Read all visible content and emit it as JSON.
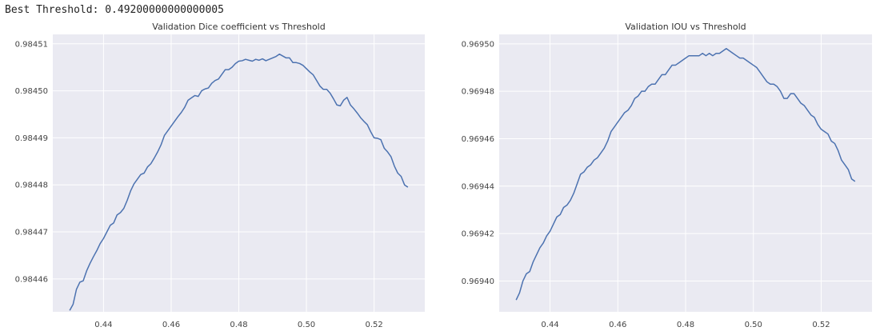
{
  "output": {
    "best_threshold_text": "Best Threshold: 0.49200000000000005"
  },
  "colors": {
    "background": "#EAEAF2",
    "grid": "#FFFFFF",
    "line": "#4C72B0"
  },
  "chart_data": [
    {
      "type": "line",
      "title": "Validation Dice coefficient vs Threshold",
      "xlabel": "",
      "ylabel": "",
      "xlim": [
        0.425,
        0.535
      ],
      "ylim": [
        0.984453,
        0.984512
      ],
      "xticks": [
        0.44,
        0.46,
        0.48,
        0.5,
        0.52
      ],
      "xtick_labels": [
        "0.44",
        "0.46",
        "0.48",
        "0.50",
        "0.52"
      ],
      "yticks": [
        0.98446,
        0.98447,
        0.98448,
        0.98449,
        0.9845,
        0.98451
      ],
      "ytick_labels": [
        "0.98446",
        "0.98447",
        "0.98448",
        "0.98449",
        "0.98450",
        "0.98451"
      ],
      "grid": true,
      "series": [
        {
          "x": [
            0.43,
            0.431,
            0.432,
            0.433,
            0.434,
            0.435,
            0.436,
            0.437,
            0.438,
            0.439,
            0.44,
            0.441,
            0.442,
            0.443,
            0.444,
            0.445,
            0.446,
            0.447,
            0.448,
            0.449,
            0.45,
            0.451,
            0.452,
            0.453,
            0.454,
            0.455,
            0.456,
            0.457,
            0.458,
            0.459,
            0.46,
            0.461,
            0.462,
            0.463,
            0.464,
            0.465,
            0.466,
            0.467,
            0.468,
            0.469,
            0.47,
            0.471,
            0.472,
            0.473,
            0.474,
            0.475,
            0.476,
            0.477,
            0.478,
            0.479,
            0.48,
            0.481,
            0.482,
            0.483,
            0.484,
            0.485,
            0.486,
            0.487,
            0.488,
            0.489,
            0.49,
            0.491,
            0.492,
            0.493,
            0.494,
            0.495,
            0.496,
            0.497,
            0.498,
            0.499,
            0.5,
            0.501,
            0.502,
            0.503,
            0.504,
            0.505,
            0.506,
            0.507,
            0.508,
            0.509,
            0.51,
            0.511,
            0.512,
            0.513,
            0.514,
            0.515,
            0.516,
            0.517,
            0.518,
            0.519,
            0.52,
            0.521,
            0.522,
            0.523,
            0.524,
            0.525,
            0.526,
            0.527,
            0.528,
            0.529,
            0.53
          ],
          "y": [
            0.9844533,
            0.9844546,
            0.9844578,
            0.9844593,
            0.9844596,
            0.9844617,
            0.9844633,
            0.9844647,
            0.984466,
            0.9844675,
            0.9844686,
            0.98447,
            0.9844714,
            0.9844719,
            0.9844736,
            0.9844741,
            0.984475,
            0.9844767,
            0.9844787,
            0.9844802,
            0.9844812,
            0.9844822,
            0.9844825,
            0.9844838,
            0.9844845,
            0.9844857,
            0.984487,
            0.9844885,
            0.9844905,
            0.9844915,
            0.9844925,
            0.9844935,
            0.9844945,
            0.9844954,
            0.9844965,
            0.984498,
            0.9844985,
            0.984499,
            0.9844988,
            0.9845,
            0.9845004,
            0.9845006,
            0.9845016,
            0.9845022,
            0.9845025,
            0.9845035,
            0.9845045,
            0.9845045,
            0.984505,
            0.9845058,
            0.9845063,
            0.9845064,
            0.9845067,
            0.9845065,
            0.9845063,
            0.9845067,
            0.9845065,
            0.9845068,
            0.9845064,
            0.9845067,
            0.984507,
            0.9845073,
            0.9845078,
            0.9845074,
            0.984507,
            0.984507,
            0.984506,
            0.984506,
            0.9845058,
            0.9845054,
            0.9845047,
            0.984504,
            0.9845034,
            0.9845022,
            0.984501,
            0.9845003,
            0.9845003,
            0.9844995,
            0.9844983,
            0.984497,
            0.9844968,
            0.984498,
            0.9844986,
            0.984497,
            0.9844962,
            0.9844953,
            0.9844943,
            0.9844935,
            0.9844928,
            0.9844913,
            0.98449,
            0.9844899,
            0.9844896,
            0.9844878,
            0.984487,
            0.984486,
            0.984484,
            0.9844825,
            0.9844818,
            0.98448,
            0.9844795
          ]
        }
      ]
    },
    {
      "type": "line",
      "title": "Validation IOU vs Threshold",
      "xlabel": "",
      "ylabel": "",
      "xlim": [
        0.425,
        0.535
      ],
      "ylim": [
        0.969387,
        0.969504
      ],
      "xticks": [
        0.44,
        0.46,
        0.48,
        0.5,
        0.52
      ],
      "xtick_labels": [
        "0.44",
        "0.46",
        "0.48",
        "0.50",
        "0.52"
      ],
      "yticks": [
        0.9694,
        0.96942,
        0.96944,
        0.96946,
        0.96948,
        0.9695
      ],
      "ytick_labels": [
        "0.96940",
        "0.96942",
        "0.96944",
        "0.96946",
        "0.96948",
        "0.96950"
      ],
      "grid": true,
      "series": [
        {
          "x": [
            0.43,
            0.431,
            0.432,
            0.433,
            0.434,
            0.435,
            0.436,
            0.437,
            0.438,
            0.439,
            0.44,
            0.441,
            0.442,
            0.443,
            0.444,
            0.445,
            0.446,
            0.447,
            0.448,
            0.449,
            0.45,
            0.451,
            0.452,
            0.453,
            0.454,
            0.455,
            0.456,
            0.457,
            0.458,
            0.459,
            0.46,
            0.461,
            0.462,
            0.463,
            0.464,
            0.465,
            0.466,
            0.467,
            0.468,
            0.469,
            0.47,
            0.471,
            0.472,
            0.473,
            0.474,
            0.475,
            0.476,
            0.477,
            0.478,
            0.479,
            0.48,
            0.481,
            0.482,
            0.483,
            0.484,
            0.485,
            0.486,
            0.487,
            0.488,
            0.489,
            0.49,
            0.491,
            0.492,
            0.493,
            0.494,
            0.495,
            0.496,
            0.497,
            0.498,
            0.499,
            0.5,
            0.501,
            0.502,
            0.503,
            0.504,
            0.505,
            0.506,
            0.507,
            0.508,
            0.509,
            0.51,
            0.511,
            0.512,
            0.513,
            0.514,
            0.515,
            0.516,
            0.517,
            0.518,
            0.519,
            0.52,
            0.521,
            0.522,
            0.523,
            0.524,
            0.525,
            0.526,
            0.527,
            0.528,
            0.529,
            0.53
          ],
          "y": [
            0.969392,
            0.969395,
            0.9694,
            0.969403,
            0.969404,
            0.969408,
            0.969411,
            0.969414,
            0.969416,
            0.969419,
            0.969421,
            0.969424,
            0.969427,
            0.969428,
            0.969431,
            0.969432,
            0.969434,
            0.969437,
            0.969441,
            0.969445,
            0.969446,
            0.969448,
            0.969449,
            0.969451,
            0.969452,
            0.969454,
            0.969456,
            0.969459,
            0.969463,
            0.969465,
            0.969467,
            0.969469,
            0.969471,
            0.969472,
            0.969474,
            0.969477,
            0.969478,
            0.96948,
            0.96948,
            0.969482,
            0.969483,
            0.969483,
            0.969485,
            0.969487,
            0.969487,
            0.969489,
            0.969491,
            0.969491,
            0.969492,
            0.969493,
            0.969494,
            0.969495,
            0.969495,
            0.969495,
            0.969495,
            0.969496,
            0.969495,
            0.969496,
            0.969495,
            0.969496,
            0.969496,
            0.969497,
            0.969498,
            0.969497,
            0.969496,
            0.969495,
            0.969494,
            0.969494,
            0.969493,
            0.969492,
            0.969491,
            0.96949,
            0.969488,
            0.969486,
            0.969484,
            0.969483,
            0.969483,
            0.969482,
            0.96948,
            0.969477,
            0.969477,
            0.969479,
            0.969479,
            0.969477,
            0.969475,
            0.969474,
            0.969472,
            0.96947,
            0.969469,
            0.969466,
            0.969464,
            0.969463,
            0.969462,
            0.969459,
            0.969458,
            0.969455,
            0.969451,
            0.969449,
            0.969447,
            0.969443,
            0.969442
          ]
        }
      ]
    }
  ]
}
